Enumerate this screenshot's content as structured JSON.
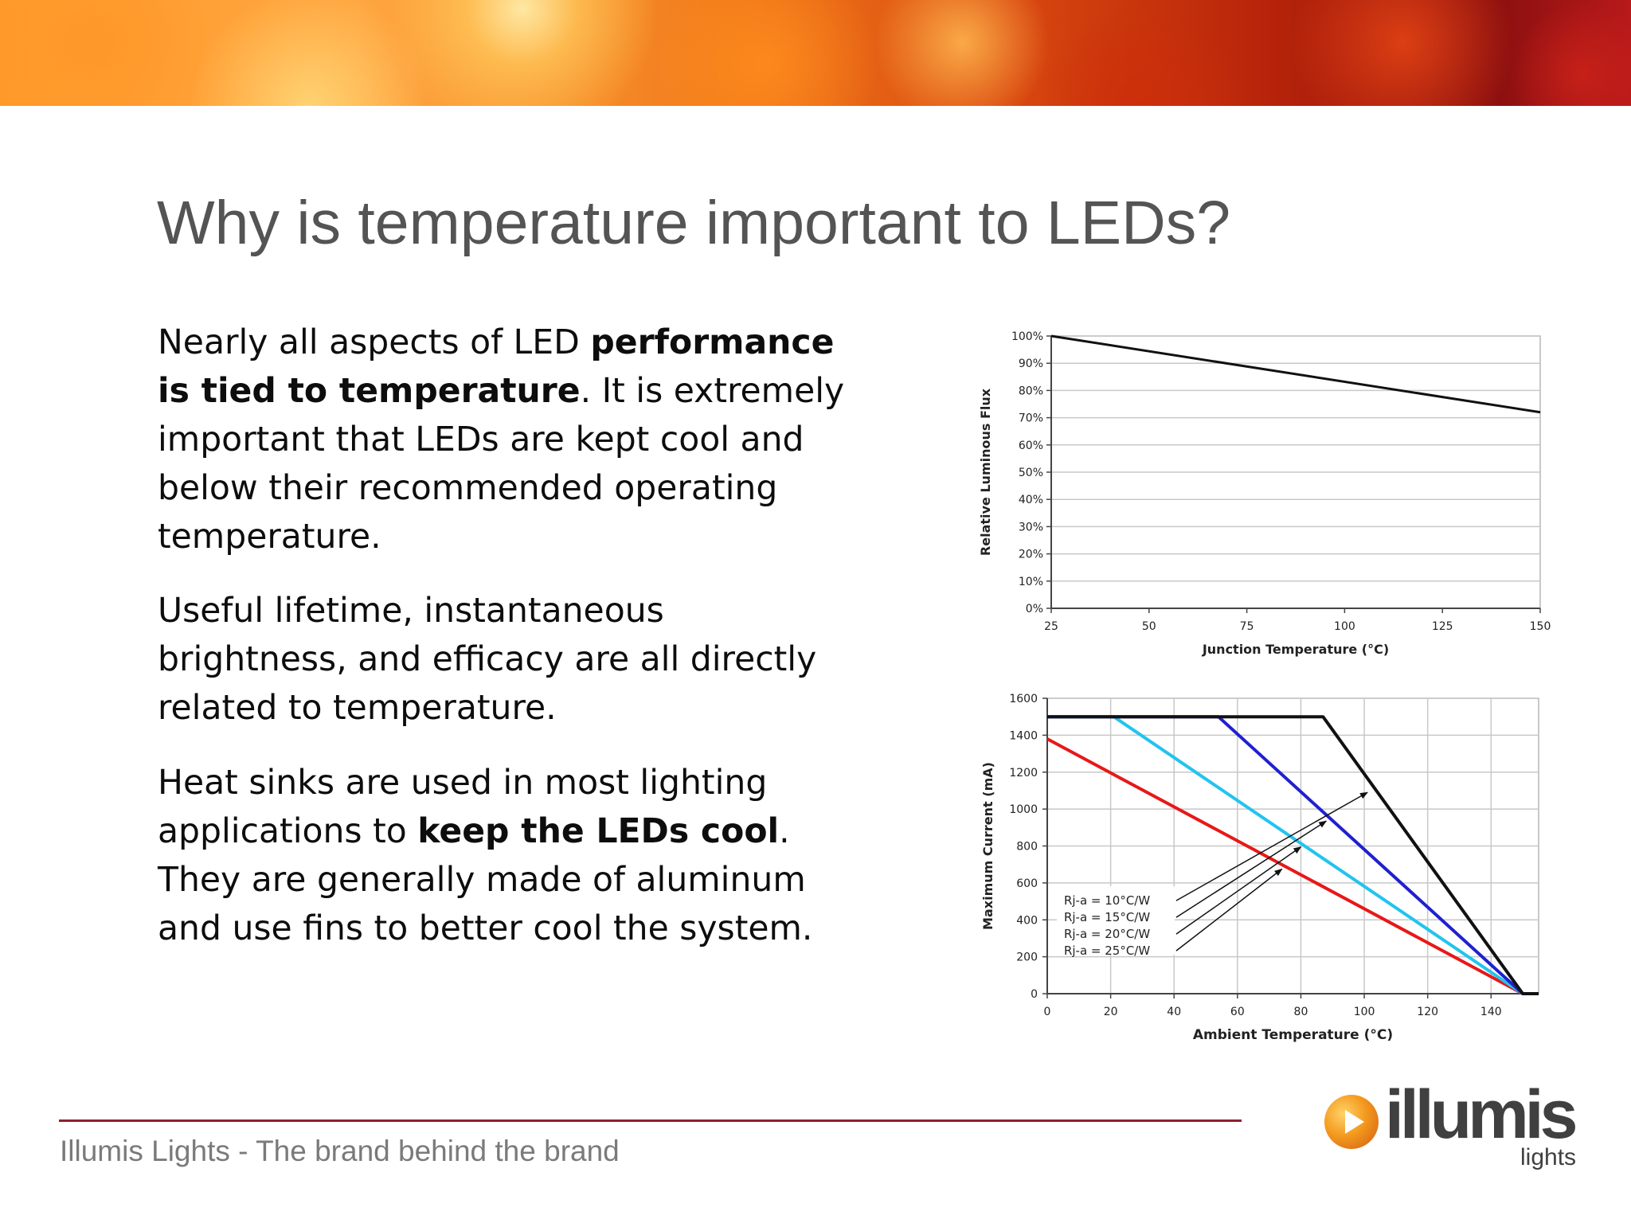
{
  "slide": {
    "title": "Why is temperature important to LEDs?",
    "paragraphs": [
      {
        "runs": [
          {
            "text": "Nearly all aspects of LED ",
            "bold": false
          },
          {
            "text": "performance is tied to temperature",
            "bold": true
          },
          {
            "text": ". It is extremely important that LEDs are kept cool and below their recommended operating temperature.",
            "bold": false
          }
        ]
      },
      {
        "runs": [
          {
            "text": "Useful lifetime, instantaneous brightness, and efficacy are all directly related to temperature.",
            "bold": false
          }
        ]
      },
      {
        "runs": [
          {
            "text": "Heat sinks are used in most lighting applications to ",
            "bold": false
          },
          {
            "text": "keep the LEDs cool",
            "bold": true
          },
          {
            "text": ". They are generally made of aluminum and use fins to better cool the system.",
            "bold": false
          }
        ]
      }
    ],
    "footer": "Illumis Lights - The brand behind the brand",
    "logo": {
      "word": "illumis",
      "sub": "lights"
    },
    "colors": {
      "title": "#545454",
      "footer_line": "#8e1f2f",
      "footer_text": "#7a7a7a"
    }
  },
  "chart_data": [
    {
      "type": "line",
      "title": "",
      "xlabel": "Junction Temperature (°C)",
      "ylabel": "Relative Luminous Flux",
      "xlim": [
        25,
        150
      ],
      "ylim": [
        0,
        100
      ],
      "x_ticks": [
        25,
        50,
        75,
        100,
        125,
        150
      ],
      "y_ticks": [
        0,
        10,
        20,
        30,
        40,
        50,
        60,
        70,
        80,
        90,
        100
      ],
      "y_tick_labels": [
        "0%",
        "10%",
        "20%",
        "30%",
        "40%",
        "50%",
        "60%",
        "70%",
        "80%",
        "90%",
        "100%"
      ],
      "grid": "horizontal",
      "series": [
        {
          "color": "#111111",
          "x": [
            25,
            150
          ],
          "y": [
            100,
            72
          ]
        }
      ]
    },
    {
      "type": "line",
      "title": "",
      "xlabel": "Ambient Temperature (°C)",
      "ylabel": "Maximum Current (mA)",
      "xlim": [
        0,
        155
      ],
      "ylim": [
        0,
        1600
      ],
      "x_ticks": [
        0,
        20,
        40,
        60,
        80,
        100,
        120,
        140
      ],
      "y_ticks": [
        0,
        200,
        400,
        600,
        800,
        1000,
        1200,
        1400,
        1600
      ],
      "grid": "both",
      "annotations": [
        "Rj-a = 10°C/W",
        "Rj-a = 15°C/W",
        "Rj-a = 20°C/W",
        "Rj-a = 25°C/W"
      ],
      "series": [
        {
          "name": "Rj-a = 10°C/W",
          "color": "#111111",
          "x": [
            0,
            87,
            150,
            155
          ],
          "y": [
            1500,
            1500,
            0,
            0
          ]
        },
        {
          "name": "Rj-a = 15°C/W",
          "color": "#2020d0",
          "x": [
            0,
            54,
            150
          ],
          "y": [
            1500,
            1500,
            0
          ]
        },
        {
          "name": "Rj-a = 20°C/W",
          "color": "#22c4ee",
          "x": [
            0,
            21,
            150
          ],
          "y": [
            1500,
            1500,
            0
          ]
        },
        {
          "name": "Rj-a = 25°C/W",
          "color": "#e81818",
          "x": [
            0,
            150,
            155
          ],
          "y": [
            1380,
            0,
            0
          ]
        }
      ]
    }
  ]
}
